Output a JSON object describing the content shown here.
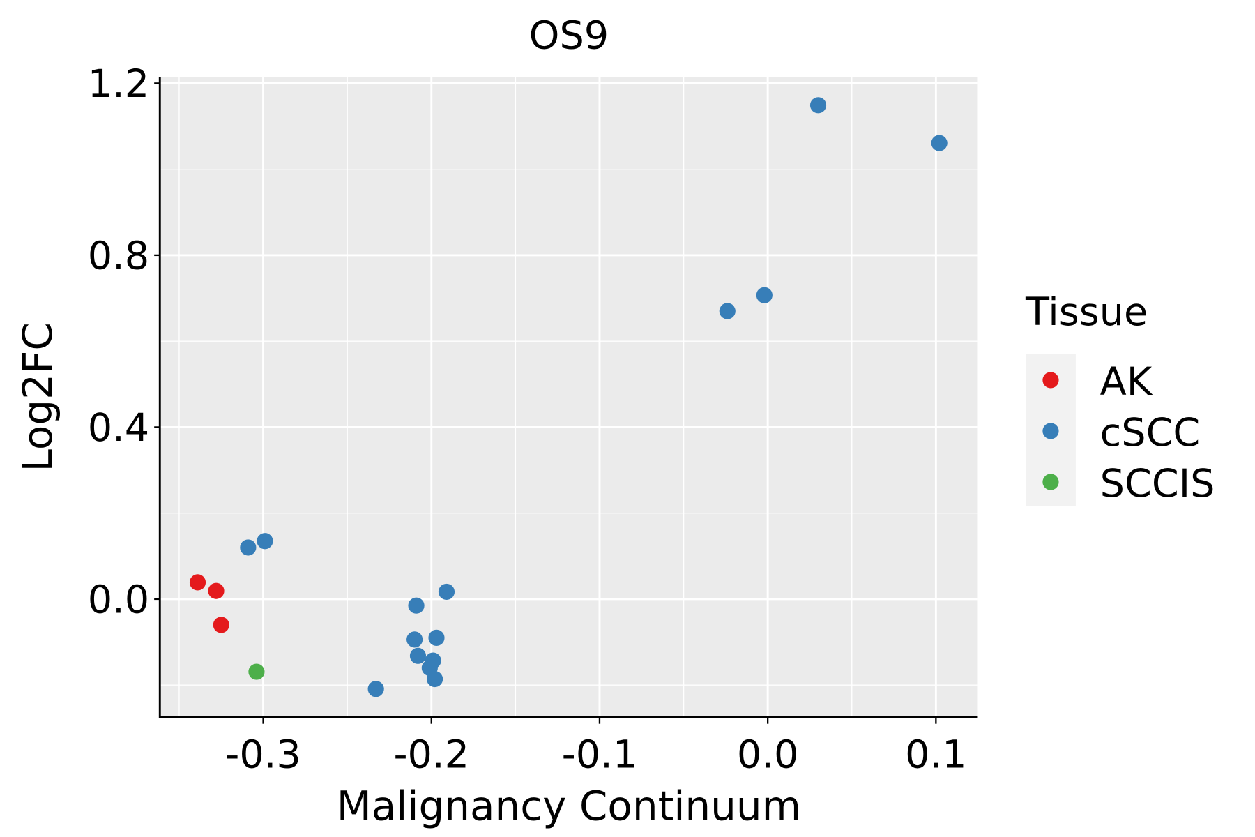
{
  "chart_data": {
    "type": "scatter",
    "title": "OS9",
    "xlabel": "Malignancy Continuum",
    "ylabel": "Log2FC",
    "xlim": [
      -0.361,
      0.1245
    ],
    "ylim": [
      -0.275,
      1.215
    ],
    "xticks": [
      -0.3,
      -0.2,
      -0.1,
      0.0,
      0.1
    ],
    "xtick_labels": [
      "-0.3",
      "-0.2",
      "-0.1",
      "0.0",
      "0.1"
    ],
    "yticks": [
      0.0,
      0.4,
      0.8,
      1.2
    ],
    "ytick_labels": [
      "0.0",
      "0.4",
      "0.8",
      "1.2"
    ],
    "grid": true,
    "legend": {
      "title": "Tissue",
      "placement": "right"
    },
    "series": [
      {
        "name": "AK",
        "color": "#E41A1C",
        "points": [
          [
            -0.339,
            0.039
          ],
          [
            -0.328,
            0.019
          ],
          [
            -0.325,
            -0.06
          ]
        ]
      },
      {
        "name": "cSCC",
        "color": "#377EB8",
        "points": [
          [
            -0.309,
            0.12
          ],
          [
            -0.299,
            0.135
          ],
          [
            -0.191,
            0.017
          ],
          [
            -0.209,
            -0.015
          ],
          [
            -0.21,
            -0.094
          ],
          [
            -0.197,
            -0.09
          ],
          [
            -0.208,
            -0.132
          ],
          [
            -0.199,
            -0.143
          ],
          [
            -0.201,
            -0.16
          ],
          [
            -0.198,
            -0.186
          ],
          [
            -0.233,
            -0.209
          ],
          [
            -0.024,
            0.67
          ],
          [
            -0.002,
            0.707
          ],
          [
            0.03,
            1.149
          ],
          [
            0.102,
            1.061
          ]
        ]
      },
      {
        "name": "SCCIS",
        "color": "#4DAF4A",
        "points": [
          [
            -0.304,
            -0.169
          ]
        ]
      }
    ]
  }
}
